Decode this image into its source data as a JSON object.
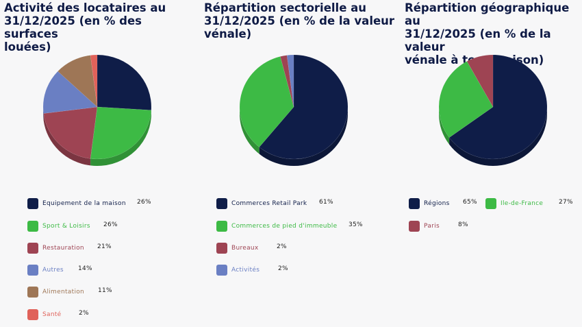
{
  "chart_data": [
    {
      "type": "pie",
      "title": "Activité des locataires au\n31/12/2025 (en % des surfaces\nlouées)",
      "categories": [
        "Equipement de la maison",
        "Sport & Loisirs",
        "Restauration",
        "Autres",
        "Alimentation",
        "Santé"
      ],
      "values": [
        26,
        26,
        21,
        14,
        11,
        2
      ],
      "value_labels": [
        "26%",
        "26%",
        "21%",
        "14%",
        "11%",
        "2%"
      ],
      "colors": [
        "#0f1d48",
        "#3dba45",
        "#9e4453",
        "#6a7fc3",
        "#9e7656",
        "#e0625a"
      ],
      "label_colors": [
        "#0f1d48",
        "#3dba45",
        "#9e4453",
        "#6a7fc3",
        "#9e7656",
        "#e0625a"
      ]
    },
    {
      "type": "pie",
      "title": "Répartition sectorielle au\n31/12/2025 (en % de la valeur\nvénale)",
      "categories": [
        "Commerces Retail Park",
        "Commerces de pied d'immeuble",
        "Bureaux",
        "Activités"
      ],
      "values": [
        61,
        35,
        2,
        2
      ],
      "value_labels": [
        "61%",
        "35%",
        "2%",
        "2%"
      ],
      "colors": [
        "#0f1d48",
        "#3dba45",
        "#9e4453",
        "#6a7fc3"
      ],
      "label_colors": [
        "#0f1d48",
        "#3dba45",
        "#9e4453",
        "#6a7fc3"
      ]
    },
    {
      "type": "pie",
      "title": "Répartition géographique au\n31/12/2025 (en % de la valeur\nvénale à terminaison)",
      "categories": [
        "Régions",
        "Ile-de-France",
        "Paris"
      ],
      "values": [
        65,
        27,
        8
      ],
      "value_labels": [
        "65%",
        "27%",
        "8%"
      ],
      "colors": [
        "#0f1d48",
        "#3dba45",
        "#9e4453"
      ],
      "label_colors": [
        "#0f1d48",
        "#3dba45",
        "#9e4453"
      ]
    }
  ]
}
